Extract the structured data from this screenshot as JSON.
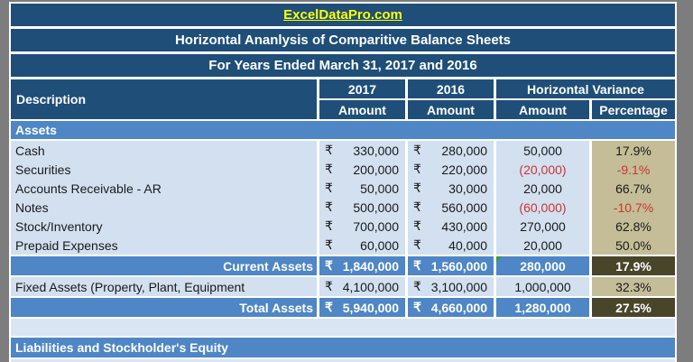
{
  "header": {
    "site_link": "ExcelDataPro.com",
    "title": "Horizontal Ananlysis of Comparitive Balance Sheets",
    "subtitle": "For Years Ended March 31, 2017 and 2016"
  },
  "table": {
    "currency": "₹",
    "columns": {
      "description": "Description",
      "year_2017": "2017",
      "year_2016": "2016",
      "variance_group": "Horizontal Variance",
      "amount": "Amount",
      "percentage": "Percentage"
    },
    "sections": {
      "assets": "Assets",
      "liabilities": "Liabilities and Stockholder's Equity"
    },
    "rows": [
      {
        "label": "Cash",
        "amount_2017": "330,000",
        "amount_2016": "280,000",
        "variance": "50,000",
        "percentage": "17.9%"
      },
      {
        "label": "Securities",
        "amount_2017": "200,000",
        "amount_2016": "220,000",
        "variance": "(20,000)",
        "percentage": "-9.1%"
      },
      {
        "label": "Accounts Receivable - AR",
        "amount_2017": "50,000",
        "amount_2016": "30,000",
        "variance": "20,000",
        "percentage": "66.7%"
      },
      {
        "label": "Notes",
        "amount_2017": "500,000",
        "amount_2016": "560,000",
        "variance": "(60,000)",
        "percentage": "-10.7%"
      },
      {
        "label": "Stock/Inventory",
        "amount_2017": "700,000",
        "amount_2016": "430,000",
        "variance": "270,000",
        "percentage": "62.8%"
      },
      {
        "label": "Prepaid Expenses",
        "amount_2017": "60,000",
        "amount_2016": "40,000",
        "variance": "20,000",
        "percentage": "50.0%"
      }
    ],
    "totals": {
      "current_assets": {
        "label": "Current Assets",
        "amount_2017": "1,840,000",
        "amount_2016": "1,560,000",
        "variance": "280,000",
        "percentage": "17.9%"
      },
      "fixed_assets": {
        "label": "Fixed Assets (Property, Plant, Equipment",
        "amount_2017": "4,100,000",
        "amount_2016": "3,100,000",
        "variance": "1,000,000",
        "percentage": "32.3%"
      },
      "total_assets": {
        "label": "Total Assets",
        "amount_2017": "5,940,000",
        "amount_2016": "4,660,000",
        "variance": "1,280,000",
        "percentage": "27.5%"
      }
    }
  },
  "colors": {
    "navy_header": "#1F4E79",
    "section_blue": "#4E86C6",
    "row_light_blue": "#D2E0F0",
    "empty_row_blue": "#D9E5F3",
    "percentage_tan": "#C4BD97",
    "total_percentage_olive": "#494529",
    "negative_red": "#CC3333",
    "link_yellow": "#FFFF00",
    "canvas_gray": "#7D7D7D",
    "flag_green": "#2FA12F"
  }
}
